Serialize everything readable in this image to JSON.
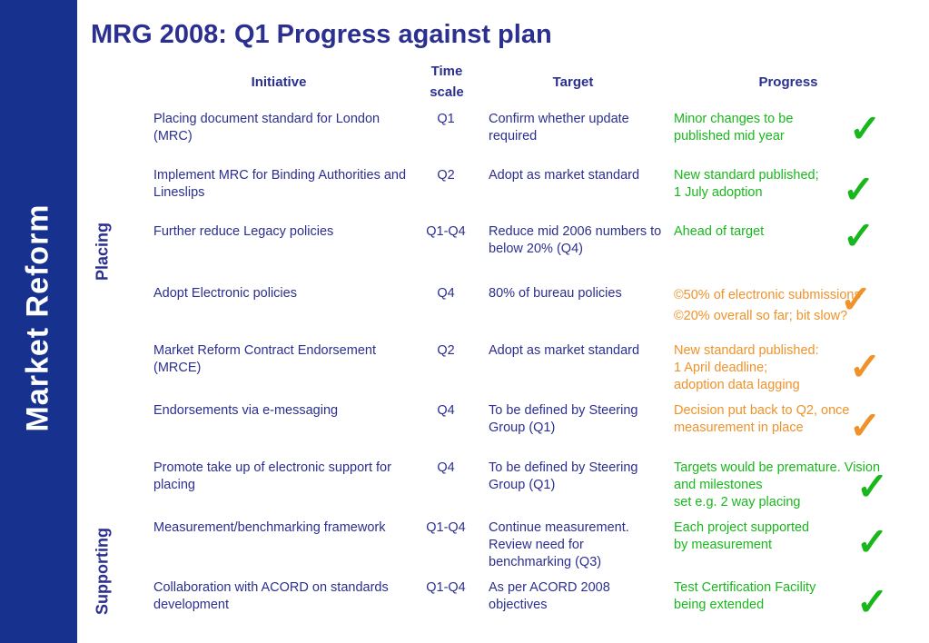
{
  "sidebar": {
    "title": "Market Reform"
  },
  "page": {
    "title": "MRG 2008: Q1 Progress against plan"
  },
  "groups": {
    "placing": "Placing",
    "supporting": "Supporting"
  },
  "headers": {
    "initiative": "Initiative",
    "timescale": "Time scale",
    "target": "Target",
    "progress": "Progress"
  },
  "colors": {
    "sidebar": "#17318f",
    "text": "#2b2f8f",
    "on_track_green": "#18b81c",
    "at_risk_orange": "#f0922a"
  },
  "rows": [
    {
      "initiative": "Placing document standard for London (MRC)",
      "timescale": "Q1",
      "target": "Confirm whether update required",
      "progress": "Minor changes to be\npublished mid year",
      "status": "green",
      "check_icon": "checkmark-icon"
    },
    {
      "initiative": "Implement MRC for Binding Authorities and Lineslips",
      "timescale": "Q2",
      "target": "Adopt as market standard",
      "progress": "New standard published;\n1 July adoption",
      "status": "green",
      "check_icon": "checkmark-icon"
    },
    {
      "initiative": "Further reduce Legacy policies",
      "timescale": "Q1-Q4",
      "target": "Reduce mid 2006 numbers to below 20% (Q4)",
      "progress": "Ahead of target",
      "status": "green",
      "check_icon": "checkmark-icon"
    },
    {
      "initiative": "Adopt Electronic policies",
      "timescale": "Q4",
      "target": "80% of bureau policies",
      "progress": "©50% of electronic submissions\n©20% overall so far; bit slow?",
      "status": "orange",
      "check_icon": "checkmark-icon"
    },
    {
      "initiative": "Market Reform Contract Endorsement (MRCE)",
      "timescale": "Q2",
      "target": "Adopt as market standard",
      "progress": "New standard published:\n1 April deadline;\nadoption data lagging",
      "status": "orange",
      "check_icon": "checkmark-icon"
    },
    {
      "initiative": "Endorsements via e-messaging",
      "timescale": "Q4",
      "target": "To be defined by Steering Group (Q1)",
      "progress": "Decision put back to Q2, once\nmeasurement in place",
      "status": "orange",
      "check_icon": "checkmark-icon"
    },
    {
      "initiative": "Promote take up of electronic support for placing",
      "timescale": "Q4",
      "target": "To be defined by Steering Group (Q1)",
      "progress": "Targets would be premature. Vision\nand milestones\n set e.g. 2 way placing",
      "status": "green",
      "check_icon": "checkmark-icon"
    },
    {
      "initiative": "Measurement/benchmarking framework",
      "timescale": "Q1-Q4",
      "target": "Continue measurement. Review need for benchmarking (Q3)",
      "progress": "Each project supported\nby measurement",
      "status": "green",
      "check_icon": "checkmark-icon"
    },
    {
      "initiative": "Collaboration with ACORD on standards development",
      "timescale": "Q1-Q4",
      "target": "As per ACORD 2008 objectives",
      "progress": "Test Certification Facility\nbeing extended",
      "status": "green",
      "check_icon": "checkmark-icon"
    }
  ]
}
